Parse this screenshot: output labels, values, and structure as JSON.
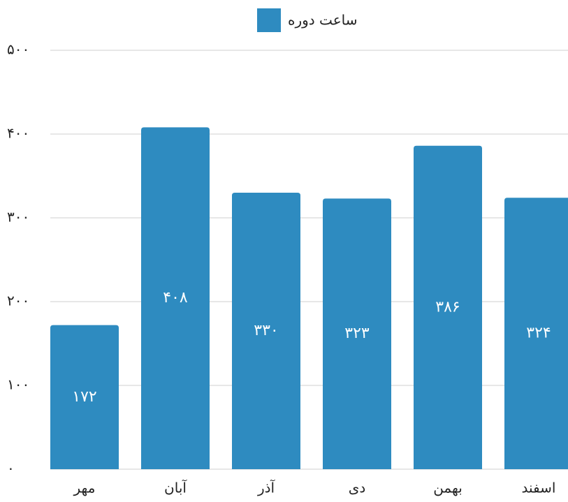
{
  "chart_data": {
    "type": "bar",
    "categories": [
      "مهر",
      "آبان",
      "آذر",
      "دی",
      "بهمن",
      "اسفند"
    ],
    "series": [
      {
        "name": "ساعت دوره",
        "color": "#2e8bc0",
        "values": [
          172,
          408,
          330,
          323,
          386,
          324
        ],
        "value_labels": [
          "۱۷۲",
          "۴۰۸",
          "۳۳۰",
          "۳۲۳",
          "۳۸۶",
          "۳۲۴"
        ]
      }
    ],
    "ylim": [
      0,
      500
    ],
    "yticks": [
      {
        "value": 0,
        "label": "۰"
      },
      {
        "value": 100,
        "label": "۱۰۰"
      },
      {
        "value": 200,
        "label": "۲۰۰"
      },
      {
        "value": 300,
        "label": "۳۰۰"
      },
      {
        "value": 400,
        "label": "۴۰۰"
      },
      {
        "value": 500,
        "label": "۵۰۰"
      }
    ],
    "grid": true,
    "legend": "top"
  }
}
